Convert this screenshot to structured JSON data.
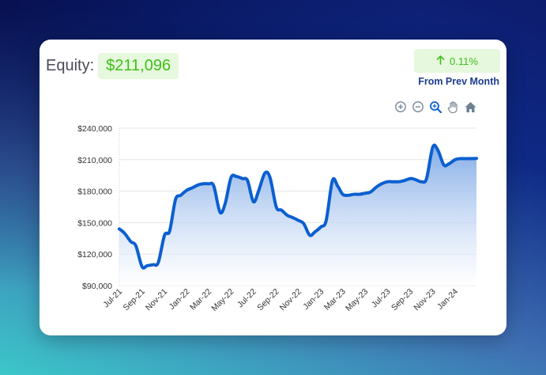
{
  "equity": {
    "label": "Equity:",
    "value": "$211,096"
  },
  "change": {
    "value": "0.11%",
    "caption": "From Prev Month",
    "direction_icon": "arrow-up-icon",
    "color": "#3fbf1a"
  },
  "toolbar": {
    "tools": [
      "zoom-in-icon",
      "zoom-out-icon",
      "selection-zoom-icon",
      "pan-hand-icon",
      "reset-home-icon"
    ]
  },
  "colors": {
    "line": "#0b5fd0",
    "area_top": "#7ea9e6",
    "area_bottom": "#ffffff",
    "positive": "#3fbf1a",
    "caption": "#1b3d8f"
  },
  "chart_data": {
    "type": "area",
    "title": "",
    "xlabel": "",
    "ylabel": "",
    "ylim": [
      90000,
      240000
    ],
    "yticks": [
      90000,
      120000,
      150000,
      180000,
      210000,
      240000
    ],
    "ytick_labels": [
      "$90,000",
      "$120,000",
      "$150,000",
      "$180,000",
      "$210,000",
      "$240,000"
    ],
    "x_tick_labels": [
      "Jul-21",
      "Sep-21",
      "Nov-21",
      "Jan-22",
      "Mar-22",
      "May-22",
      "Jul-22",
      "Sep-22",
      "Nov-22",
      "Jan-23",
      "Mar-23",
      "May-23",
      "Jul-23",
      "Sep-23",
      "Nov-23",
      "Jan-24"
    ],
    "x_range": [
      "2021-07-01",
      "2024-02-28"
    ],
    "grid": "horizontal",
    "series": [
      {
        "dates": [
          "2021-07-01",
          "2021-07-15",
          "2021-08-01",
          "2021-08-15",
          "2021-09-01",
          "2021-09-15",
          "2021-10-01",
          "2021-10-15",
          "2021-11-01",
          "2021-11-15",
          "2021-12-01",
          "2021-12-15",
          "2022-01-01",
          "2022-01-15",
          "2022-02-01",
          "2022-02-15",
          "2022-03-01",
          "2022-03-15",
          "2022-04-01",
          "2022-04-15",
          "2022-05-01",
          "2022-05-15",
          "2022-06-01",
          "2022-06-15",
          "2022-07-01",
          "2022-07-15",
          "2022-08-01",
          "2022-08-15",
          "2022-09-01",
          "2022-09-15",
          "2022-10-01",
          "2022-10-15",
          "2022-11-01",
          "2022-11-15",
          "2022-12-01",
          "2022-12-15",
          "2023-01-01",
          "2023-01-15",
          "2023-02-01",
          "2023-02-15",
          "2023-03-01",
          "2023-03-15",
          "2023-04-01",
          "2023-04-15",
          "2023-05-01",
          "2023-05-15",
          "2023-06-01",
          "2023-06-15",
          "2023-07-01",
          "2023-07-15",
          "2023-08-01",
          "2023-08-15",
          "2023-09-01",
          "2023-09-15",
          "2023-10-01",
          "2023-10-15",
          "2023-11-01",
          "2023-11-15",
          "2023-12-01",
          "2023-12-15",
          "2024-01-01",
          "2024-01-15",
          "2024-02-01",
          "2024-02-28"
        ],
        "values": [
          144000,
          140000,
          132000,
          128000,
          108000,
          109000,
          110000,
          112000,
          138000,
          142000,
          172000,
          176000,
          181000,
          183000,
          186000,
          187000,
          187000,
          185000,
          160000,
          168000,
          193000,
          194000,
          192000,
          190000,
          170000,
          180000,
          197000,
          193000,
          165000,
          162000,
          157000,
          155000,
          152000,
          149000,
          138000,
          141000,
          146000,
          152000,
          190000,
          185000,
          177000,
          176000,
          177000,
          177000,
          178000,
          179000,
          184000,
          187000,
          189000,
          189000,
          189000,
          190000,
          192000,
          191000,
          189000,
          192000,
          222000,
          219000,
          205000,
          206000,
          210000,
          211000,
          211000,
          211096
        ]
      }
    ]
  }
}
